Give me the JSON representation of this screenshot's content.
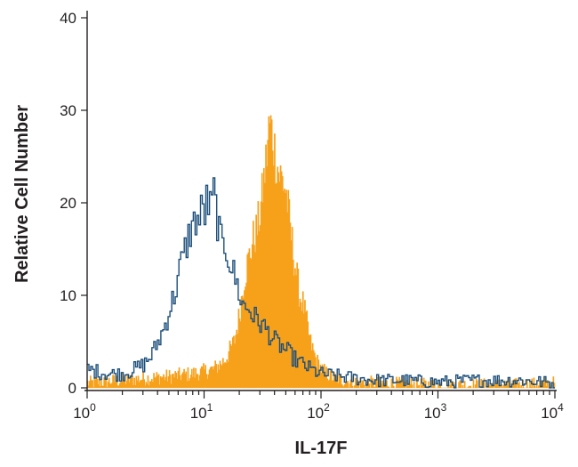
{
  "chart_data": {
    "type": "histogram",
    "xlabel": "IL-17F",
    "ylabel": "Relative Cell Number",
    "x_scale": "log",
    "xlim": [
      1,
      10000
    ],
    "ylim": [
      0,
      40
    ],
    "x_ticks": [
      {
        "value": 1,
        "base": "10",
        "exp": "0"
      },
      {
        "value": 10,
        "base": "10",
        "exp": "1"
      },
      {
        "value": 100,
        "base": "10",
        "exp": "2"
      },
      {
        "value": 1000,
        "base": "10",
        "exp": "3"
      },
      {
        "value": 10000,
        "base": "10",
        "exp": "4"
      }
    ],
    "y_ticks": [
      0,
      10,
      20,
      30,
      40
    ],
    "grid": false,
    "legend": "none",
    "series": [
      {
        "style": "filled",
        "color": "#f7a11a",
        "x": [
          1,
          2,
          3,
          5,
          8,
          12,
          15,
          18,
          20,
          22,
          24,
          26,
          28,
          30,
          32,
          34,
          35,
          36,
          38,
          40,
          42,
          44,
          46,
          48,
          50,
          55,
          60,
          65,
          70,
          80,
          90,
          100,
          120,
          150,
          200,
          300,
          500,
          1000,
          2000,
          5000,
          10000
        ],
        "y": [
          0.5,
          0.8,
          1.0,
          1.2,
          1.5,
          2.0,
          3.0,
          5.0,
          8.0,
          12.0,
          14.0,
          16.0,
          17.0,
          19.0,
          22.0,
          25.0,
          27.0,
          28.5,
          27.5,
          25.5,
          24.0,
          23.0,
          22.5,
          22.0,
          21.0,
          16.5,
          13.0,
          10.0,
          9.0,
          5.0,
          3.0,
          2.0,
          1.2,
          0.8,
          0.6,
          0.5,
          0.4,
          0.3,
          0.3,
          0.3,
          0.5
        ]
      },
      {
        "style": "outline",
        "color": "#1d4f7c",
        "x": [
          1,
          1.5,
          2,
          2.5,
          3,
          3.5,
          4,
          4.5,
          5,
          5.5,
          6,
          6.5,
          7,
          7.5,
          8,
          8.5,
          9,
          9.5,
          10,
          10.5,
          11,
          11.5,
          12,
          13,
          14,
          15,
          17,
          19,
          21,
          24,
          27,
          30,
          35,
          40,
          50,
          60,
          70,
          80,
          100,
          150,
          200,
          300,
          500,
          1000,
          2000,
          5000,
          10000
        ],
        "y": [
          2.0,
          1.5,
          1.5,
          2.0,
          2.5,
          3.5,
          5.0,
          6.5,
          8.5,
          10.0,
          12.5,
          14.0,
          15.5,
          17.0,
          17.5,
          18.5,
          18.0,
          19.5,
          19.0,
          20.5,
          19.0,
          20.0,
          21.0,
          17.5,
          15.0,
          15.5,
          13.0,
          11.0,
          9.0,
          8.5,
          7.5,
          7.0,
          6.0,
          5.0,
          4.0,
          3.0,
          2.5,
          2.0,
          1.5,
          1.2,
          1.0,
          0.8,
          0.8,
          0.6,
          0.8,
          0.8,
          0.5
        ]
      }
    ]
  }
}
